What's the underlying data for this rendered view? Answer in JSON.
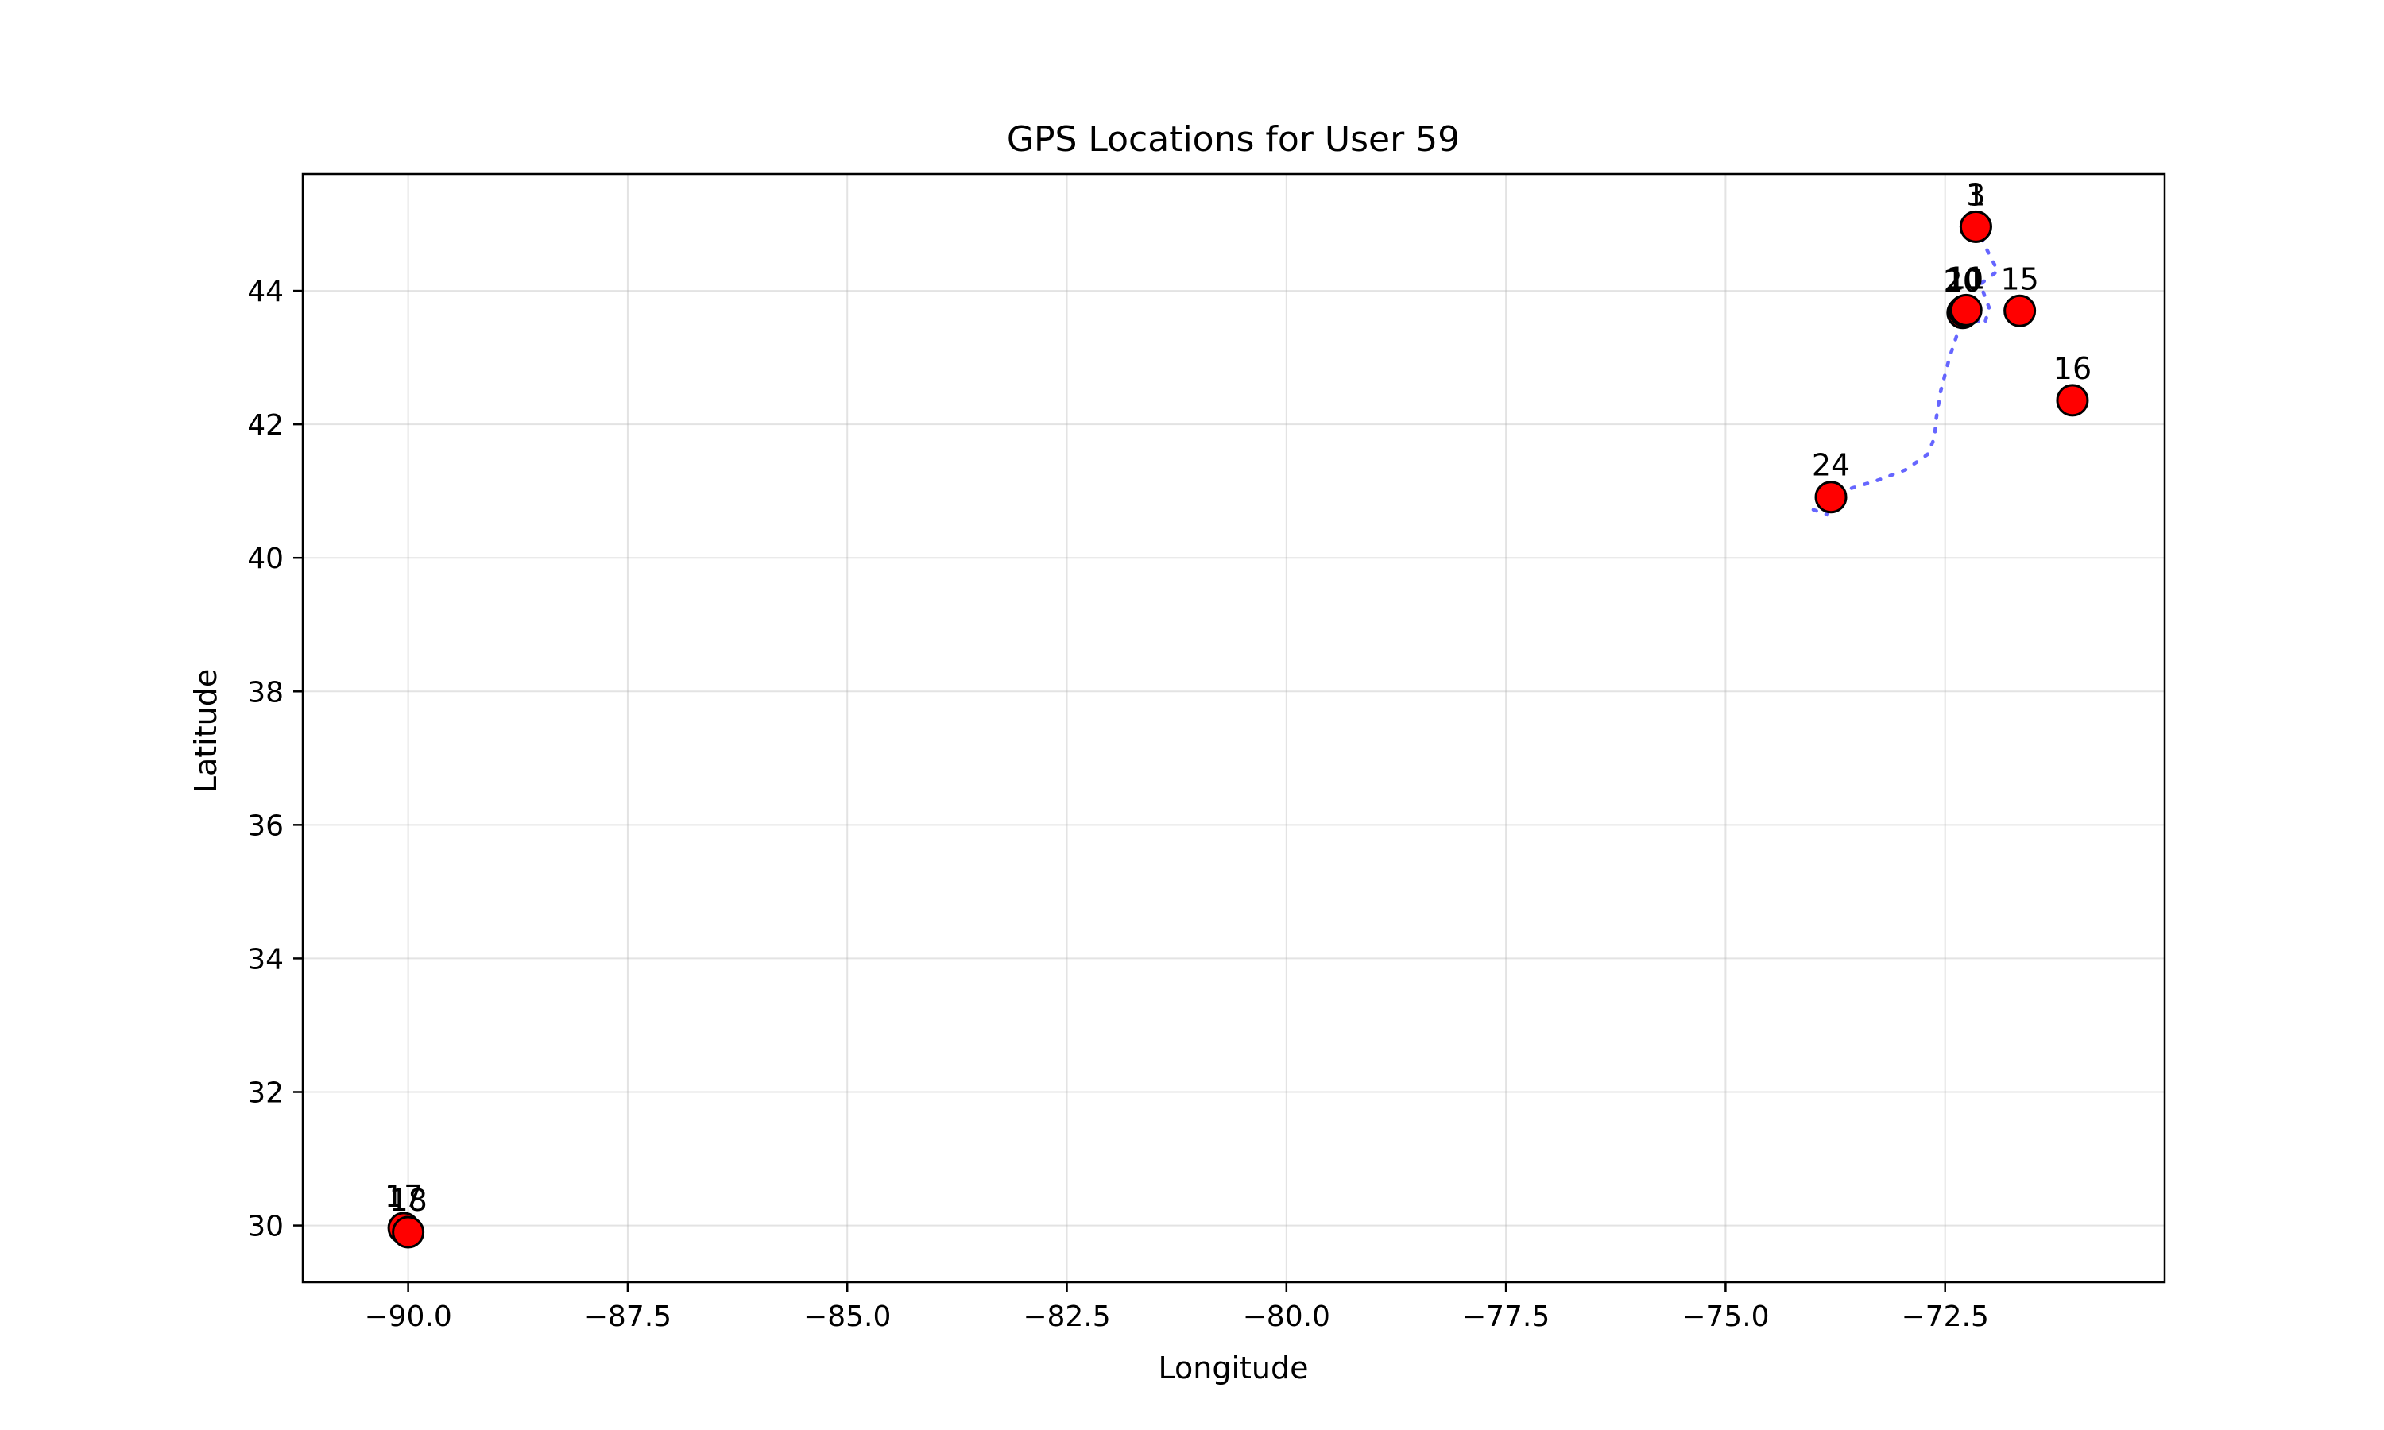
{
  "chart_data": {
    "type": "scatter",
    "title": "GPS Locations for User 59",
    "xlabel": "Longitude",
    "ylabel": "Latitude",
    "xlim": [
      -91.2,
      -70.0
    ],
    "ylim": [
      29.15,
      45.75
    ],
    "xticks": [
      -90.0,
      -87.5,
      -85.0,
      -82.5,
      -80.0,
      -77.5,
      -75.0,
      -72.5
    ],
    "xtick_labels": [
      "−90.0",
      "−87.5",
      "−85.0",
      "−82.5",
      "−80.0",
      "−77.5",
      "−75.0",
      "−72.5"
    ],
    "yticks": [
      30,
      32,
      34,
      36,
      38,
      40,
      42,
      44
    ],
    "ytick_labels": [
      "30",
      "32",
      "34",
      "36",
      "38",
      "40",
      "42",
      "44"
    ],
    "grid": true,
    "legend": false,
    "colors": {
      "marker_fill": "#ff0000",
      "marker_edge": "#000000",
      "path": "#3333ff"
    },
    "points": [
      {
        "label": "1",
        "x": -72.15,
        "y": 44.96
      },
      {
        "label": "3",
        "x": -72.15,
        "y": 44.96
      },
      {
        "label": "15",
        "x": -71.65,
        "y": 43.7
      },
      {
        "label": "16",
        "x": -71.05,
        "y": 42.36
      },
      {
        "label": "20",
        "x": -72.3,
        "y": 43.67
      },
      {
        "label": "10",
        "x": -72.28,
        "y": 43.7
      },
      {
        "label": "11",
        "x": -72.26,
        "y": 43.71
      },
      {
        "label": "24",
        "x": -73.8,
        "y": 40.91
      },
      {
        "label": "17",
        "x": -90.05,
        "y": 29.96
      },
      {
        "label": "18",
        "x": -90.0,
        "y": 29.9
      }
    ],
    "path": [
      {
        "x": -74.0,
        "y": 40.72
      },
      {
        "x": -73.85,
        "y": 40.65
      },
      {
        "x": -73.75,
        "y": 40.97
      },
      {
        "x": -73.55,
        "y": 41.05
      },
      {
        "x": -73.25,
        "y": 41.17
      },
      {
        "x": -72.95,
        "y": 41.32
      },
      {
        "x": -72.7,
        "y": 41.55
      },
      {
        "x": -72.62,
        "y": 41.8
      },
      {
        "x": -72.6,
        "y": 42.1
      },
      {
        "x": -72.55,
        "y": 42.5
      },
      {
        "x": -72.45,
        "y": 43.0
      },
      {
        "x": -72.35,
        "y": 43.4
      },
      {
        "x": -72.3,
        "y": 43.65
      },
      {
        "x": -72.05,
        "y": 43.5
      },
      {
        "x": -72.0,
        "y": 43.75
      },
      {
        "x": -72.1,
        "y": 44.1
      },
      {
        "x": -71.9,
        "y": 44.3
      },
      {
        "x": -72.0,
        "y": 44.55
      },
      {
        "x": -72.15,
        "y": 44.96
      }
    ]
  }
}
